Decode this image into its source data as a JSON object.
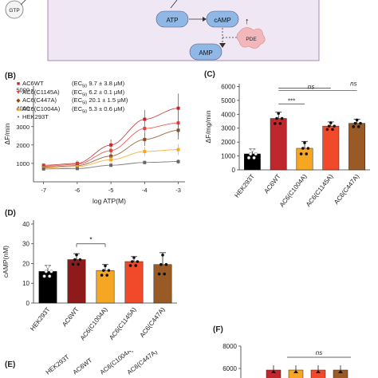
{
  "diagram": {
    "labels": [
      "GTP",
      "ATP",
      "cAMP",
      "PDE",
      "AMP"
    ],
    "colors": {
      "box_bg": "#efe7f4",
      "box_border": "#a58ab8",
      "pill": "#8fb8e6",
      "pde": "#f2b7ba"
    }
  },
  "panel_B": {
    "letter": "(B)",
    "legend": [
      {
        "name": "AC6WT",
        "ec": "(EC",
        "sub": "50",
        "val": " 9.7 ± 3.8 μM)",
        "color": "#c0272d",
        "marker": "■"
      },
      {
        "name": "AC6(C1145A)",
        "ec": "(EC",
        "sub": "50",
        "val": " 6.2 ± 0.1 μM)",
        "color": "#e8413a",
        "marker": "▼"
      },
      {
        "name": "AC6(C447A)",
        "ec": "(EC",
        "sub": "50",
        "val": " 20.1 ± 1.5 μM)",
        "color": "#8b4a1d",
        "marker": "◆"
      },
      {
        "name": "AC6(C1004A)",
        "ec": "(EC",
        "sub": "50",
        "val": " 5.3 ± 0.6 μM)",
        "color": "#f5a623",
        "marker": "▲"
      },
      {
        "name": "HEK293T",
        "ec": "",
        "sub": "",
        "val": "",
        "color": "#555555",
        "marker": "•"
      }
    ]
  },
  "chart_data": [
    {
      "type": "line",
      "panel": "B",
      "xlabel": "log ATP(M)",
      "ylabel": "ΔF/min",
      "x": [
        -7,
        -6,
        -5,
        -4,
        -3
      ],
      "xticks": [
        "-7",
        "-6",
        "-5",
        "-4",
        "-3"
      ],
      "yticks": [
        "1000",
        "2000",
        "3000",
        "4000",
        "5000"
      ],
      "ylim": [
        0,
        5200
      ],
      "xlim": [
        -7.3,
        -2.8
      ],
      "series": [
        {
          "name": "AC6WT",
          "color": "#c0272d",
          "values": [
            900,
            1000,
            2000,
            3400,
            4000
          ],
          "err": [
            100,
            150,
            300,
            500,
            800
          ]
        },
        {
          "name": "AC6(C1145A)",
          "color": "#e8413a",
          "values": [
            850,
            950,
            1700,
            2900,
            3200
          ],
          "err": [
            100,
            150,
            300,
            400,
            700
          ]
        },
        {
          "name": "AC6(C447A)",
          "color": "#8b4a1d",
          "values": [
            800,
            880,
            1400,
            2300,
            2800
          ],
          "err": [
            100,
            120,
            250,
            350,
            500
          ]
        },
        {
          "name": "AC6(C1004A)",
          "color": "#f5a623",
          "values": [
            750,
            820,
            1200,
            1650,
            1750
          ],
          "err": [
            80,
            100,
            200,
            250,
            300
          ]
        },
        {
          "name": "HEK293T",
          "color": "#666666",
          "values": [
            700,
            720,
            900,
            1050,
            1100
          ],
          "err": [
            50,
            60,
            80,
            100,
            120
          ]
        }
      ]
    },
    {
      "type": "bar",
      "panel": "C",
      "ylabel": "ΔF/mg/min",
      "categories": [
        "HEK293T",
        "AC6WT",
        "AC6(C1004A)",
        "AC6(C1145A)",
        "AC6(C447A)"
      ],
      "values": [
        1150,
        3700,
        1550,
        3150,
        3350
      ],
      "err": [
        350,
        450,
        500,
        300,
        300
      ],
      "colors": [
        "#000000",
        "#c0272d",
        "#f5a623",
        "#f04a2b",
        "#9a5a25"
      ],
      "yticks": [
        "0",
        "1000",
        "2000",
        "3000",
        "4000",
        "5000",
        "6000"
      ],
      "ylim": [
        0,
        6200
      ],
      "annotations": [
        "ns",
        "***",
        "ns"
      ]
    },
    {
      "type": "bar",
      "panel": "D",
      "ylabel": "cAMP(nM)",
      "categories": [
        "HEK293T",
        "AC6WT",
        "AC6(C1004A)",
        "AC6(C1145A)",
        "AC6(C447A)"
      ],
      "values": [
        16,
        22,
        16.5,
        21,
        19.5
      ],
      "err": [
        3,
        3,
        3,
        2.5,
        6
      ],
      "colors": [
        "#000000",
        "#8e1a1a",
        "#f5a623",
        "#f04a2b",
        "#9a5a25"
      ],
      "yticks": [
        "0",
        "10",
        "20",
        "30",
        "40"
      ],
      "ylim": [
        0,
        42
      ],
      "annotations": [
        "*"
      ]
    },
    {
      "type": "bar",
      "panel": "F",
      "yticks": [
        "6000",
        "8000"
      ],
      "annotations": [
        "ns"
      ]
    }
  ],
  "panel_E": {
    "letter": "(E)",
    "labels": [
      "HEK293T",
      "AC6WT",
      "AC6(C1004A)",
      "AC6(C447A)"
    ]
  },
  "panel_C": {
    "letter": "(C)"
  },
  "panel_D": {
    "letter": "(D)"
  },
  "panel_F": {
    "letter": "(F)"
  }
}
